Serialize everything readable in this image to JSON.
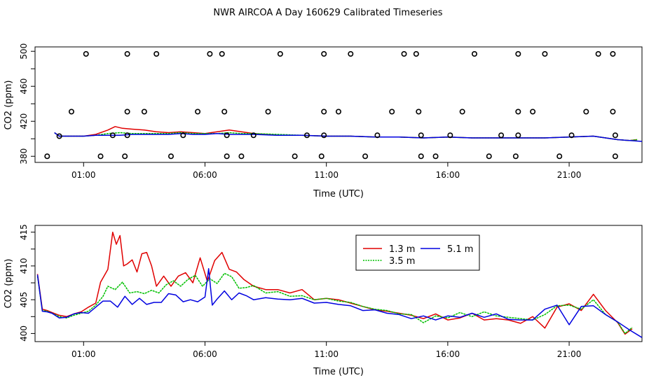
{
  "colors": {
    "red": "#e00000",
    "green": "#00c000",
    "blue": "#0000e0",
    "black": "#000000"
  },
  "chart_data": [
    {
      "type": "line",
      "title": "NWR AIRCOA A  Day 160629  Calibrated Timeseries",
      "xlabel": "Time (UTC)",
      "ylabel": "CO2 (ppm)",
      "xlim": [
        -1.0,
        24.0
      ],
      "ylim": [
        373,
        505
      ],
      "yticks": [
        380,
        420,
        460,
        500
      ],
      "ytick_labels": [
        "380",
        "420",
        "460",
        "500"
      ],
      "xticks": [
        1,
        6,
        11,
        16,
        21
      ],
      "xtick_labels": [
        "01:00",
        "06:00",
        "11:00",
        "16:00",
        "21:00"
      ],
      "series": [
        {
          "name": "1.3 m",
          "color": "#e00000",
          "x": [
            -0.2,
            0.0,
            0.5,
            1.0,
            1.5,
            2.0,
            2.3,
            2.6,
            3.0,
            3.5,
            4.0,
            4.5,
            5.0,
            5.5,
            6.0,
            6.5,
            7.0,
            7.5,
            8.0,
            8.5,
            9.0,
            10.0,
            11.0,
            12.0,
            13.0,
            14.0,
            15.0,
            16.0,
            17.0,
            18.0,
            19.0,
            20.0,
            21.0,
            22.0,
            22.5,
            23.0,
            23.5,
            23.8
          ],
          "y": [
            407,
            403,
            403,
            403,
            405,
            410,
            414,
            412,
            411,
            410,
            408,
            407,
            408,
            407,
            406,
            408,
            410,
            408,
            406,
            405,
            404,
            404,
            403,
            403,
            402,
            402,
            401,
            402,
            401,
            401,
            401,
            401,
            402,
            403,
            401,
            399,
            398,
            399
          ]
        },
        {
          "name": "3.5 m",
          "color": "#00c000",
          "x": [
            -0.2,
            0.0,
            0.5,
            1.0,
            1.5,
            2.0,
            2.5,
            3.0,
            3.5,
            4.0,
            4.5,
            5.0,
            5.5,
            6.0,
            6.5,
            7.0,
            7.5,
            8.0,
            9.0,
            10.0,
            11.0,
            12.0,
            13.0,
            14.0,
            15.0,
            16.0,
            17.0,
            18.0,
            19.0,
            20.0,
            21.0,
            22.0,
            22.5,
            23.0,
            23.5,
            23.8
          ],
          "y": [
            407,
            403,
            403,
            403,
            404,
            406,
            407,
            406,
            406,
            406,
            406,
            407,
            406,
            406,
            406,
            407,
            406,
            406,
            405,
            404,
            403,
            403,
            402,
            402,
            401,
            402,
            401,
            401,
            401,
            401,
            402,
            403,
            401,
            399,
            398,
            399
          ]
        },
        {
          "name": "5.1 m",
          "color": "#0000e0",
          "x": [
            -0.2,
            0.0,
            0.5,
            1.0,
            1.5,
            2.0,
            2.5,
            3.0,
            3.5,
            4.0,
            4.5,
            5.0,
            5.5,
            6.0,
            6.5,
            7.0,
            7.5,
            8.0,
            9.0,
            10.0,
            11.0,
            12.0,
            13.0,
            14.0,
            15.0,
            16.0,
            17.0,
            18.0,
            19.0,
            20.0,
            21.0,
            22.0,
            22.5,
            23.0,
            23.5,
            24.0
          ],
          "y": [
            407,
            403,
            403,
            403,
            404,
            404,
            404,
            405,
            405,
            405,
            405,
            406,
            405,
            405,
            406,
            405,
            405,
            405,
            404,
            404,
            403,
            403,
            402,
            402,
            401,
            402,
            401,
            401,
            401,
            401,
            402,
            403,
            401,
            399,
            398,
            397
          ]
        }
      ],
      "flag_points": [
        {
          "x": -0.5,
          "y": 380
        },
        {
          "x": 0.0,
          "y": 403
        },
        {
          "x": 0.5,
          "y": 431
        },
        {
          "x": 1.1,
          "y": 497
        },
        {
          "x": 1.7,
          "y": 380
        },
        {
          "x": 2.2,
          "y": 404
        },
        {
          "x": 2.7,
          "y": 380
        },
        {
          "x": 2.8,
          "y": 404
        },
        {
          "x": 2.8,
          "y": 431
        },
        {
          "x": 2.8,
          "y": 497
        },
        {
          "x": 3.5,
          "y": 431
        },
        {
          "x": 4.0,
          "y": 497
        },
        {
          "x": 4.6,
          "y": 380
        },
        {
          "x": 5.1,
          "y": 404
        },
        {
          "x": 5.7,
          "y": 431
        },
        {
          "x": 6.2,
          "y": 497
        },
        {
          "x": 6.7,
          "y": 497
        },
        {
          "x": 6.8,
          "y": 431
        },
        {
          "x": 6.9,
          "y": 404
        },
        {
          "x": 6.9,
          "y": 380
        },
        {
          "x": 7.5,
          "y": 380
        },
        {
          "x": 8.0,
          "y": 404
        },
        {
          "x": 8.6,
          "y": 431
        },
        {
          "x": 9.1,
          "y": 497
        },
        {
          "x": 9.7,
          "y": 380
        },
        {
          "x": 10.2,
          "y": 404
        },
        {
          "x": 10.8,
          "y": 380
        },
        {
          "x": 10.9,
          "y": 404
        },
        {
          "x": 10.9,
          "y": 431
        },
        {
          "x": 10.9,
          "y": 497
        },
        {
          "x": 11.5,
          "y": 431
        },
        {
          "x": 12.0,
          "y": 497
        },
        {
          "x": 12.6,
          "y": 380
        },
        {
          "x": 13.1,
          "y": 404
        },
        {
          "x": 13.7,
          "y": 431
        },
        {
          "x": 14.2,
          "y": 497
        },
        {
          "x": 14.7,
          "y": 497
        },
        {
          "x": 14.8,
          "y": 431
        },
        {
          "x": 14.9,
          "y": 404
        },
        {
          "x": 14.9,
          "y": 380
        },
        {
          "x": 15.5,
          "y": 380
        },
        {
          "x": 16.1,
          "y": 404
        },
        {
          "x": 16.6,
          "y": 431
        },
        {
          "x": 17.1,
          "y": 497
        },
        {
          "x": 17.7,
          "y": 380
        },
        {
          "x": 18.2,
          "y": 404
        },
        {
          "x": 18.8,
          "y": 380
        },
        {
          "x": 18.9,
          "y": 404
        },
        {
          "x": 18.9,
          "y": 431
        },
        {
          "x": 18.9,
          "y": 497
        },
        {
          "x": 19.5,
          "y": 431
        },
        {
          "x": 20.0,
          "y": 497
        },
        {
          "x": 20.6,
          "y": 380
        },
        {
          "x": 21.1,
          "y": 404
        },
        {
          "x": 21.7,
          "y": 431
        },
        {
          "x": 22.2,
          "y": 497
        },
        {
          "x": 22.8,
          "y": 497
        },
        {
          "x": 22.8,
          "y": 431
        },
        {
          "x": 22.9,
          "y": 404
        },
        {
          "x": 22.9,
          "y": 380
        }
      ]
    },
    {
      "type": "line",
      "title": "",
      "xlabel": "Time (UTC)",
      "ylabel": "CO2 (ppm)",
      "xlim": [
        -1.0,
        24.0
      ],
      "ylim": [
        398.8,
        416.0
      ],
      "yticks": [
        400,
        405,
        410,
        415
      ],
      "ytick_labels": [
        "400",
        "405",
        "410",
        "415"
      ],
      "xticks": [
        1,
        6,
        11,
        16,
        21
      ],
      "xtick_labels": [
        "01:00",
        "06:00",
        "11:00",
        "16:00",
        "21:00"
      ],
      "legend": {
        "placement": "top-center",
        "entries": [
          "1.3 m",
          "5.1 m",
          "3.5 m"
        ]
      },
      "series": [
        {
          "name": "1.3 m",
          "color": "#e00000",
          "x": [
            -0.9,
            -0.7,
            -0.5,
            -0.3,
            0.0,
            0.3,
            0.6,
            0.9,
            1.2,
            1.5,
            1.7,
            2.0,
            2.2,
            2.35,
            2.5,
            2.65,
            2.8,
            3.0,
            3.2,
            3.4,
            3.6,
            3.8,
            4.0,
            4.3,
            4.6,
            4.9,
            5.2,
            5.5,
            5.8,
            6.1,
            6.4,
            6.7,
            7.0,
            7.3,
            7.6,
            8.0,
            8.5,
            9.0,
            9.5,
            10.0,
            10.5,
            11.0,
            11.5,
            12.0,
            12.5,
            13.0,
            13.5,
            14.0,
            14.5,
            15.0,
            15.5,
            16.0,
            16.5,
            17.0,
            17.5,
            18.0,
            18.5,
            19.0,
            19.5,
            20.0,
            20.5,
            21.0,
            21.5,
            22.0,
            22.5,
            23.0,
            23.3,
            23.6
          ],
          "y": [
            408.8,
            403.6,
            403.4,
            403.1,
            402.7,
            402.5,
            402.9,
            403.2,
            403.9,
            404.5,
            407.6,
            409.5,
            415.0,
            413.2,
            414.5,
            410.0,
            410.3,
            410.9,
            409.1,
            411.8,
            412.0,
            410.0,
            407.0,
            408.5,
            407.0,
            408.5,
            409.0,
            407.5,
            411.2,
            407.7,
            410.8,
            412.0,
            409.5,
            409.1,
            408.0,
            407.0,
            406.5,
            406.5,
            406.0,
            406.5,
            405.0,
            405.2,
            405.0,
            404.5,
            404.0,
            403.5,
            403.3,
            403.0,
            402.7,
            402.2,
            402.9,
            402.0,
            402.3,
            403.0,
            402.0,
            402.2,
            402.0,
            401.5,
            402.5,
            400.8,
            403.9,
            404.4,
            403.4,
            405.8,
            403.4,
            401.6,
            399.9,
            400.7
          ]
        },
        {
          "name": "3.5 m",
          "color": "#00c000",
          "x": [
            -0.9,
            -0.7,
            -0.5,
            -0.3,
            0.0,
            0.3,
            0.6,
            0.9,
            1.2,
            1.5,
            1.8,
            2.0,
            2.3,
            2.6,
            2.9,
            3.2,
            3.5,
            3.8,
            4.1,
            4.4,
            4.7,
            5.0,
            5.3,
            5.6,
            5.9,
            6.2,
            6.5,
            6.8,
            7.1,
            7.4,
            7.7,
            8.0,
            8.5,
            9.0,
            9.5,
            10.0,
            10.5,
            11.0,
            11.5,
            12.0,
            12.5,
            13.0,
            13.5,
            14.0,
            14.5,
            15.0,
            15.5,
            16.0,
            16.5,
            17.0,
            17.5,
            18.0,
            18.5,
            19.0,
            19.5,
            20.0,
            20.5,
            21.0,
            21.5,
            22.0,
            22.5,
            23.0,
            23.3,
            23.6
          ],
          "y": [
            408.5,
            403.4,
            403.3,
            403.0,
            402.5,
            402.3,
            402.7,
            403.0,
            403.3,
            404.2,
            405.5,
            407.0,
            406.5,
            407.6,
            406.0,
            406.2,
            405.9,
            406.4,
            406.0,
            407.2,
            407.8,
            407.0,
            408.0,
            408.6,
            407.0,
            408.1,
            407.4,
            408.9,
            408.4,
            406.7,
            406.8,
            407.1,
            406.0,
            406.2,
            405.5,
            405.6,
            405.0,
            405.2,
            404.8,
            404.6,
            404.0,
            403.6,
            403.4,
            402.9,
            402.8,
            401.6,
            402.6,
            402.3,
            403.1,
            402.5,
            403.2,
            402.6,
            402.4,
            402.2,
            402.0,
            402.8,
            404.1,
            404.2,
            403.6,
            405.0,
            402.8,
            401.7,
            400.0,
            400.9
          ]
        },
        {
          "name": "5.1 m",
          "color": "#0000e0",
          "x": [
            -0.9,
            -0.7,
            -0.5,
            -0.3,
            0.0,
            0.3,
            0.6,
            0.9,
            1.2,
            1.5,
            1.8,
            2.1,
            2.4,
            2.7,
            3.0,
            3.3,
            3.6,
            3.9,
            4.2,
            4.5,
            4.8,
            5.1,
            5.4,
            5.7,
            6.0,
            6.15,
            6.3,
            6.5,
            6.8,
            7.1,
            7.4,
            7.7,
            8.0,
            8.5,
            9.0,
            9.5,
            10.0,
            10.5,
            11.0,
            11.5,
            12.0,
            12.5,
            13.0,
            13.5,
            14.0,
            14.5,
            15.0,
            15.5,
            16.0,
            16.5,
            17.0,
            17.5,
            18.0,
            18.5,
            19.0,
            19.5,
            20.0,
            20.5,
            21.0,
            21.5,
            22.0,
            22.5,
            23.0,
            23.5,
            24.0
          ],
          "y": [
            408.7,
            403.3,
            403.2,
            403.0,
            402.3,
            402.4,
            402.9,
            403.1,
            403.0,
            403.9,
            404.8,
            404.8,
            403.9,
            405.5,
            404.3,
            405.2,
            404.3,
            404.6,
            404.6,
            405.9,
            405.7,
            404.7,
            405.0,
            404.7,
            405.4,
            409.6,
            404.2,
            405.1,
            406.3,
            405.0,
            406.0,
            405.6,
            405.0,
            405.3,
            405.1,
            405.0,
            405.2,
            404.5,
            404.6,
            404.3,
            404.1,
            403.4,
            403.5,
            403.0,
            402.8,
            402.2,
            402.6,
            402.0,
            402.6,
            402.4,
            403.0,
            402.4,
            402.9,
            402.1,
            402.0,
            402.0,
            403.6,
            404.2,
            401.3,
            404.0,
            404.1,
            402.8,
            401.7,
            400.5,
            399.4
          ]
        }
      ]
    }
  ]
}
